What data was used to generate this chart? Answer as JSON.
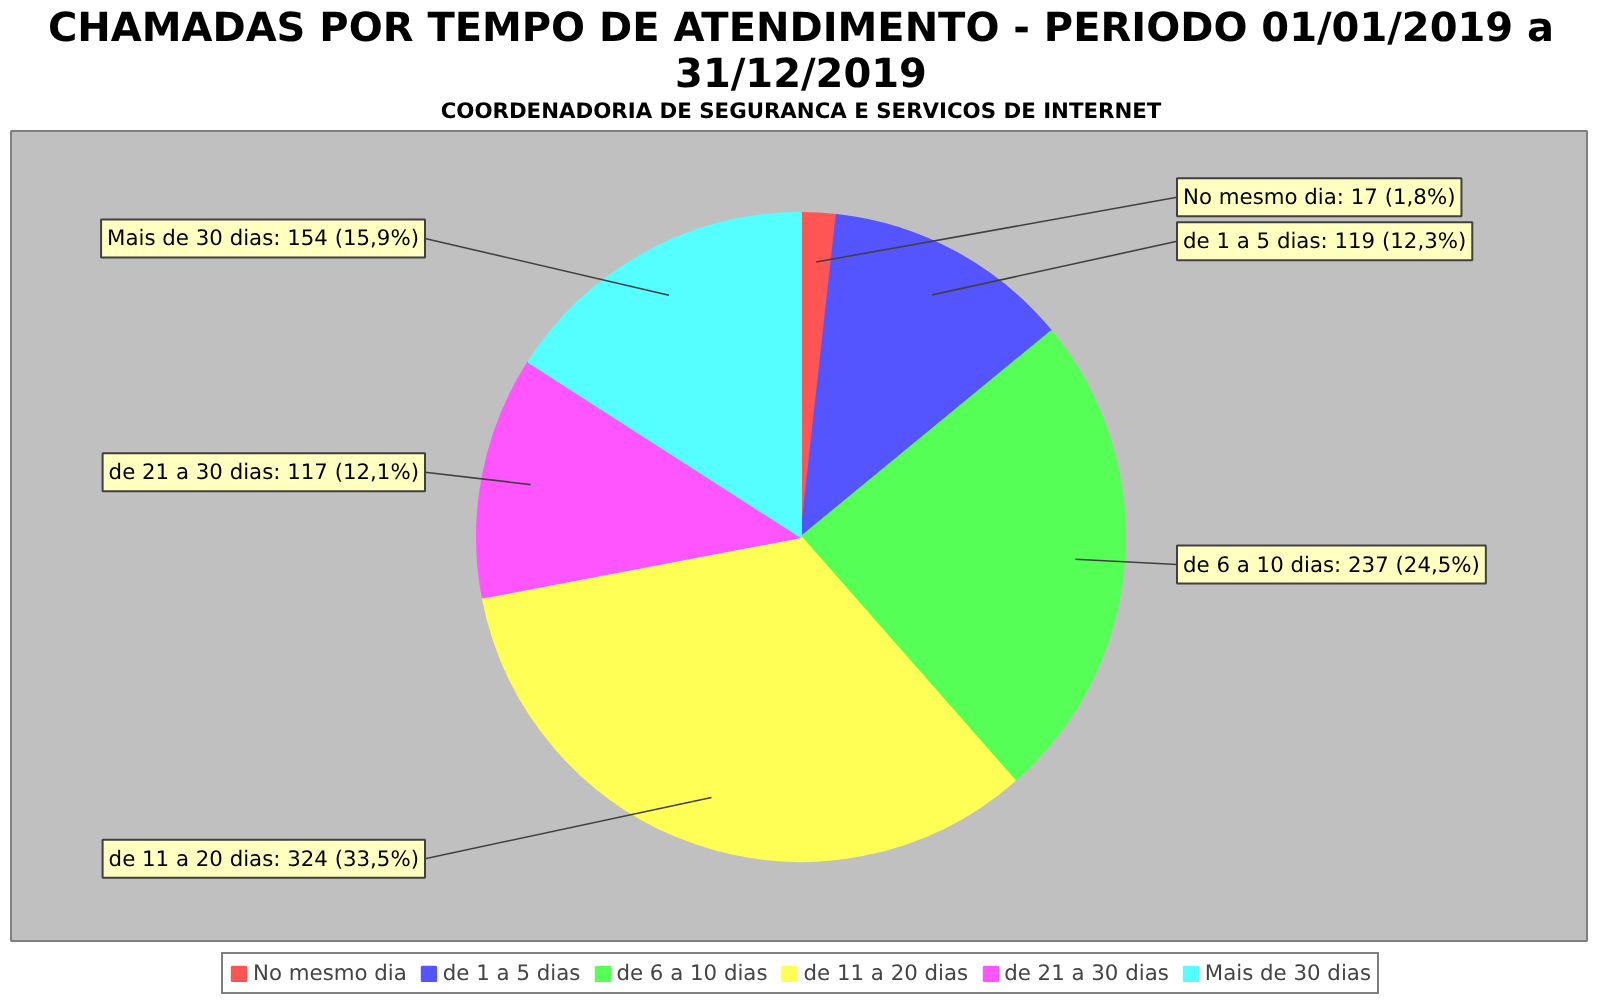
{
  "chart_data": {
    "type": "pie",
    "title": "CHAMADAS POR TEMPO DE ATENDIMENTO - PERIODO 01/01/2019 a 31/12/2019",
    "subtitle": "COORDENADORIA DE SEGURANCA E SERVICOS DE INTERNET",
    "categories": [
      "No mesmo dia",
      "de 1 a 5 dias",
      "de 6 a 10 dias",
      "de 11 a 20 dias",
      "de 21 a 30 dias",
      "Mais de 30 dias"
    ],
    "values": [
      17,
      119,
      237,
      324,
      117,
      154
    ],
    "colors": [
      "#ff5555",
      "#5555ff",
      "#55ff55",
      "#ffff55",
      "#ff55ff",
      "#55ffff"
    ],
    "value_labels": [
      "No mesmo dia: 17 (1,8%)",
      "de 1 a 5 dias: 119 (12,3%)",
      "de 6 a 10 dias: 237 (24,5%)",
      "de 11 a 20 dias: 324 (33,5%)",
      "de 21 a 30 dias: 117 (12,1%)",
      "Mais de 30 dias: 154 (15,9%)"
    ],
    "legend": "bottom"
  }
}
